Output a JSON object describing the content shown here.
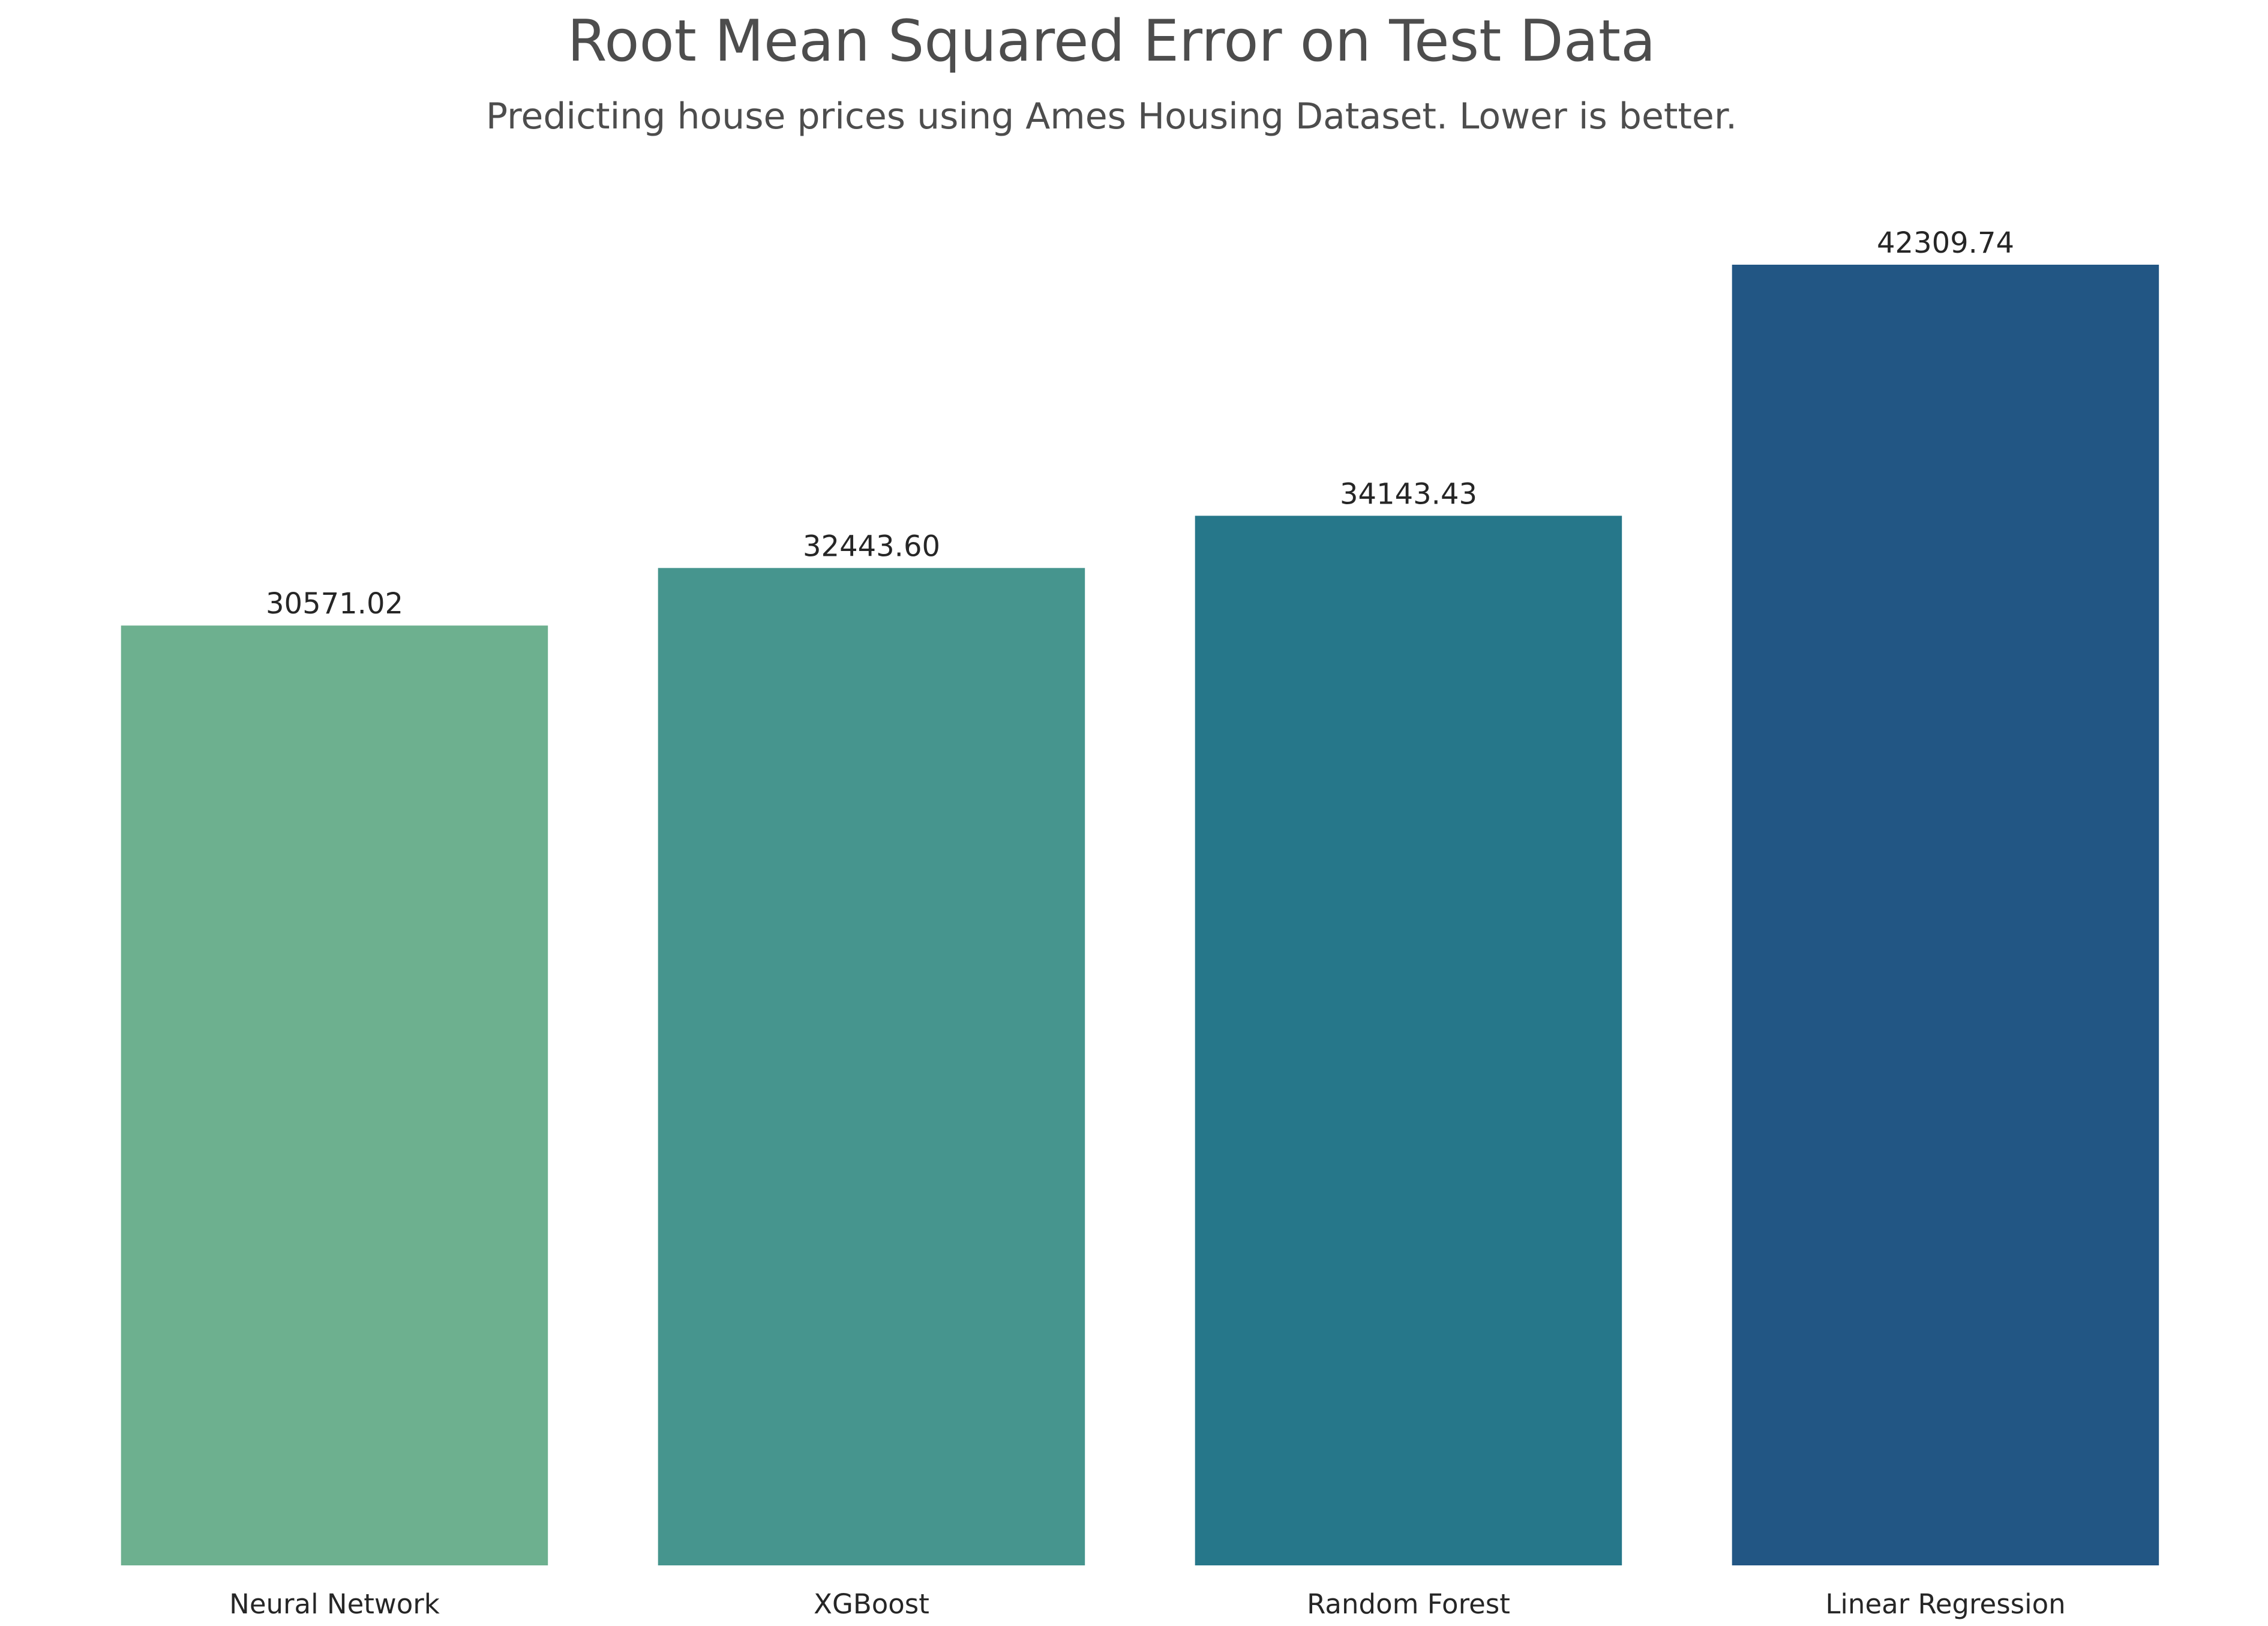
{
  "chart_data": {
    "type": "bar",
    "title": "Root Mean Squared Error on Test Data",
    "subtitle": "Predicting house prices using Ames Housing Dataset. Lower is better.",
    "xlabel": "",
    "ylabel": "",
    "categories": [
      "Neural Network",
      "XGBoost",
      "Random Forest",
      "Linear Regression"
    ],
    "values": [
      30571.02,
      32443.6,
      34143.43,
      42309.74
    ],
    "value_labels": [
      "30571.02",
      "32443.60",
      "34143.43",
      "42309.74"
    ],
    "colors": [
      "#6db08f",
      "#46958e",
      "#26778a",
      "#225684"
    ],
    "ylim": [
      0,
      42309.74
    ],
    "grid": false,
    "legend": "none"
  }
}
